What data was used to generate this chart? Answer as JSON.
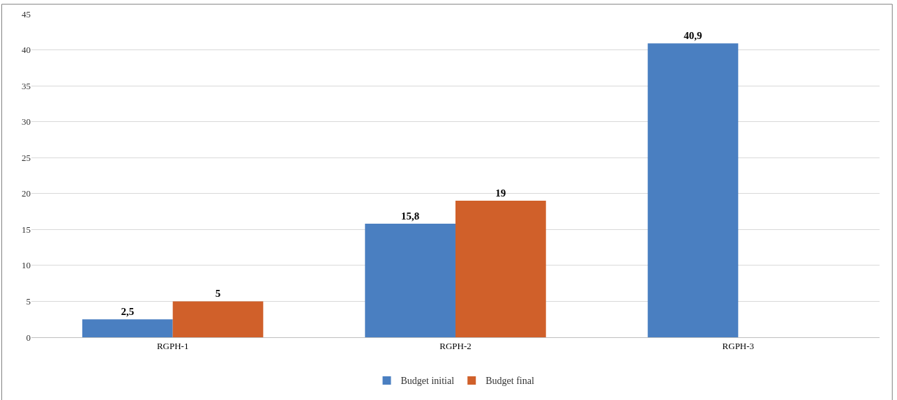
{
  "chart_data": {
    "type": "bar",
    "categories": [
      "RGPH-1",
      "RGPH-2",
      "RGPH-3"
    ],
    "series": [
      {
        "name": "Budget initial",
        "color": "#4a7fc1",
        "values": [
          2.5,
          15.8,
          40.9
        ],
        "value_labels": [
          "2,5",
          "15,8",
          "40,9"
        ]
      },
      {
        "name": "Budget final",
        "color": "#d0602a",
        "values": [
          5,
          19,
          null
        ],
        "value_labels": [
          "5",
          "19",
          null
        ]
      }
    ],
    "ylim": [
      0,
      45
    ],
    "yticks": [
      0,
      5,
      10,
      15,
      20,
      25,
      30,
      35,
      40,
      45
    ],
    "grid": "y",
    "legend": "bottom"
  }
}
